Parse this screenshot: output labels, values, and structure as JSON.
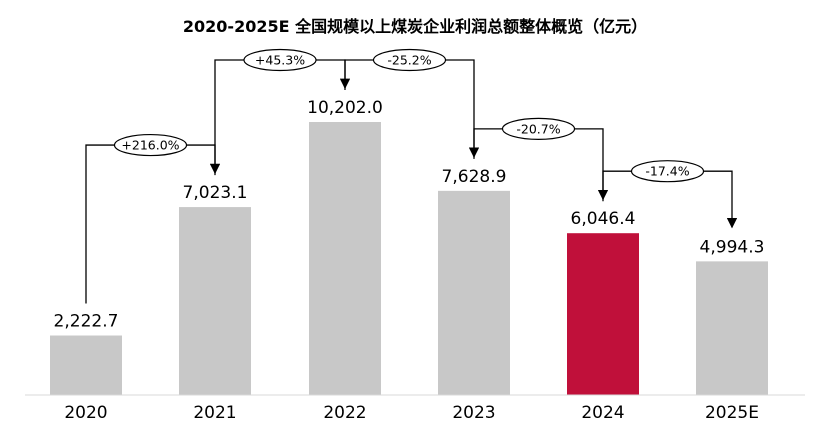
{
  "chart_data": {
    "type": "bar",
    "title": "2020-2025E 全国规模以上煤炭企业利润总额整体概览（亿元）",
    "categories": [
      "2020",
      "2021",
      "2022",
      "2023",
      "2024",
      "2025E"
    ],
    "values": [
      2222.7,
      7023.1,
      10202.0,
      7628.9,
      6046.4,
      4994.3
    ],
    "value_labels": [
      "2,222.7",
      "7,023.1",
      "10,202.0",
      "7,628.9",
      "6,046.4",
      "4,994.3"
    ],
    "growth": [
      {
        "from": "2020",
        "to": "2021",
        "label": "+216.0%"
      },
      {
        "from": "2021",
        "to": "2022",
        "label": "+45.3%"
      },
      {
        "from": "2022",
        "to": "2023",
        "label": "-25.2%"
      },
      {
        "from": "2023",
        "to": "2024",
        "label": "-20.7%"
      },
      {
        "from": "2024",
        "to": "2025E",
        "label": "-17.4%"
      }
    ],
    "colors": {
      "default": "#c8c8c8",
      "highlight": "#c0103a",
      "highlight_category": "2024"
    },
    "xlabel": "",
    "ylabel": "",
    "ylim": [
      0,
      10202.0
    ],
    "grid": false,
    "legend": "none"
  }
}
